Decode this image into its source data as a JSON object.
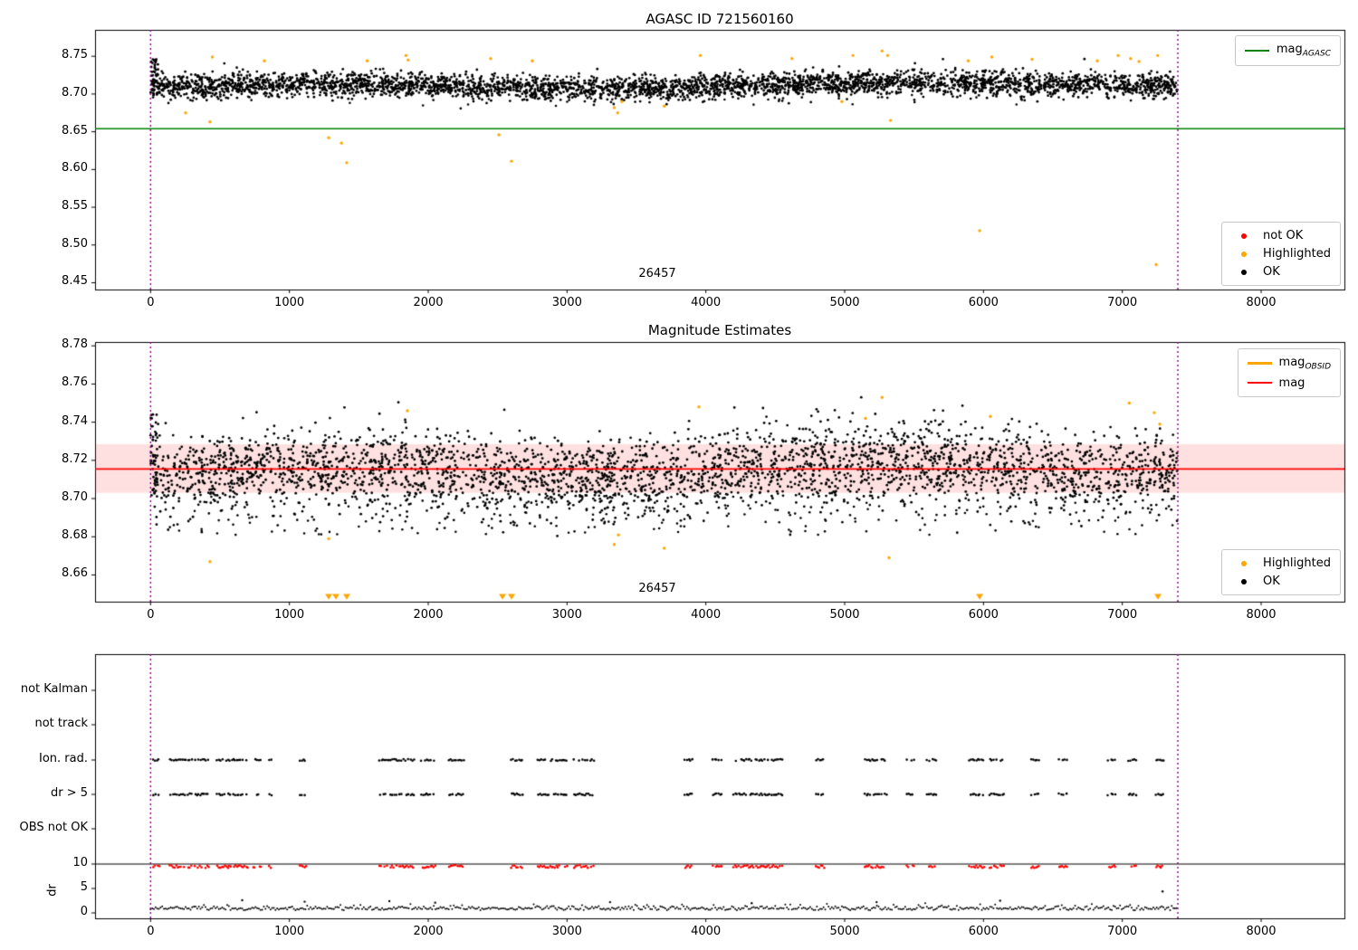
{
  "colors": {
    "black": "#000000",
    "red": "#ff0000",
    "orange": "#ffa500",
    "green": "#008000",
    "purple": "#800080",
    "band": "rgba(255,0,0,0.12)"
  },
  "chart_data": [
    {
      "type": "scatter",
      "title": "AGASC ID 721560160",
      "xlim": [
        -400,
        8600
      ],
      "ylim": [
        8.441,
        8.785
      ],
      "xticks": [
        0,
        1000,
        2000,
        3000,
        4000,
        5000,
        6000,
        7000,
        8000
      ],
      "yticks": [
        8.45,
        8.5,
        8.55,
        8.6,
        8.65,
        8.7,
        8.75
      ],
      "hline": {
        "y": 8.654,
        "color": "#008000"
      },
      "vlines": [
        0,
        7400
      ],
      "annotation": {
        "text": "26457",
        "x": 3650,
        "y": 8.462
      },
      "cloud": {
        "n": 3800,
        "seed": 42,
        "x_range": [
          10,
          7395
        ],
        "y_base": 8.709,
        "y_std": 0.008,
        "trend": 0.004,
        "wave_amp": 0.003,
        "wave_period": 700,
        "y_clamp": [
          8.679,
          8.753
        ]
      },
      "transient": {
        "n": 45,
        "seed": 7,
        "x_range": [
          0,
          55
        ],
        "y_range": [
          8.699,
          8.747
        ]
      },
      "low_tail": {
        "n": 25,
        "seed": 11,
        "x_range": [
          150,
          7350
        ],
        "y_range": [
          8.684,
          8.699
        ]
      },
      "highlighted_points": [
        [
          252,
          8.675
        ],
        [
          428,
          8.663
        ],
        [
          445,
          8.749
        ],
        [
          820,
          8.744
        ],
        [
          1283,
          8.642
        ],
        [
          1375,
          8.635
        ],
        [
          1413,
          8.609
        ],
        [
          1560,
          8.744
        ],
        [
          1840,
          8.751
        ],
        [
          1855,
          8.745
        ],
        [
          2450,
          8.747
        ],
        [
          2509,
          8.646
        ],
        [
          2600,
          8.611
        ],
        [
          2750,
          8.744
        ],
        [
          3340,
          8.682
        ],
        [
          3365,
          8.675
        ],
        [
          3395,
          8.69
        ],
        [
          3700,
          8.684
        ],
        [
          3960,
          8.751
        ],
        [
          4620,
          8.747
        ],
        [
          4980,
          8.69
        ],
        [
          5060,
          8.751
        ],
        [
          5270,
          8.757
        ],
        [
          5310,
          8.751
        ],
        [
          5330,
          8.665
        ],
        [
          5890,
          8.744
        ],
        [
          5972,
          8.519
        ],
        [
          6060,
          8.749
        ],
        [
          6350,
          8.746
        ],
        [
          6820,
          8.744
        ],
        [
          6970,
          8.751
        ],
        [
          7060,
          8.747
        ],
        [
          7120,
          8.743
        ],
        [
          7244,
          8.474
        ],
        [
          7255,
          8.751
        ]
      ],
      "legend_top": [
        {
          "type": "line",
          "color": "#008000",
          "lw": 2,
          "label": "mag",
          "sub": "AGASC"
        }
      ],
      "legend_bottom": [
        {
          "type": "dot",
          "color": "#ff0000",
          "label": "not OK"
        },
        {
          "type": "dot",
          "color": "#ffa500",
          "label": "Highlighted"
        },
        {
          "type": "dot",
          "color": "#000000",
          "label": "OK"
        }
      ]
    },
    {
      "type": "scatter",
      "title": "Magnitude Estimates",
      "xlim": [
        -400,
        8600
      ],
      "ylim": [
        8.646,
        8.782
      ],
      "xticks": [
        0,
        1000,
        2000,
        3000,
        4000,
        5000,
        6000,
        7000,
        8000
      ],
      "yticks": [
        8.66,
        8.68,
        8.7,
        8.72,
        8.74,
        8.76,
        8.78
      ],
      "band": {
        "y1": 8.703,
        "y2": 8.7285,
        "color": "rgba(255,0,0,0.12)"
      },
      "hline": {
        "y": 8.7155,
        "color": "#ff0000"
      },
      "vlines": [
        0,
        7400
      ],
      "annotation": {
        "text": "26457",
        "x": 3650,
        "y": 8.6515
      },
      "cloud": {
        "n": 3200,
        "seed": 101,
        "x_range": [
          10,
          7395
        ],
        "y_base": 8.712,
        "y_std": 0.0105,
        "trend": 0.005,
        "wave_amp": 0.004,
        "wave_period": 650,
        "y_clamp": [
          8.678,
          8.753
        ]
      },
      "transient": {
        "n": 40,
        "seed": 8,
        "x_range": [
          0,
          55
        ],
        "y_range": [
          8.7,
          8.744
        ]
      },
      "low_tail": {
        "n": 230,
        "seed": 12,
        "x_range": [
          100,
          7380
        ],
        "y_range": [
          8.681,
          8.702
        ]
      },
      "highlighted_points": [
        [
          428,
          8.667
        ],
        [
          1283,
          8.679
        ],
        [
          1850,
          8.746
        ],
        [
          3340,
          8.676
        ],
        [
          3370,
          8.681
        ],
        [
          3700,
          8.674
        ],
        [
          3950,
          8.748
        ],
        [
          5150,
          8.742
        ],
        [
          5270,
          8.753
        ],
        [
          5320,
          8.669
        ],
        [
          6050,
          8.743
        ],
        [
          7050,
          8.75
        ],
        [
          7230,
          8.745
        ],
        [
          7270,
          8.739
        ]
      ],
      "clip_triangles": {
        "xs": [
          1283,
          1335,
          1413,
          2535,
          2600,
          5972,
          7257
        ],
        "y": 8.6487,
        "color": "#ffa500"
      },
      "legend_top": [
        {
          "type": "line",
          "color": "#ffa500",
          "lw": 3,
          "label": "mag",
          "sub": "OBSID"
        },
        {
          "type": "line",
          "color": "#ff0000",
          "lw": 2,
          "label": "mag"
        }
      ],
      "legend_bottom": [
        {
          "type": "dot",
          "color": "#ffa500",
          "label": "Highlighted"
        },
        {
          "type": "dot",
          "color": "#000000",
          "label": "OK"
        }
      ]
    },
    {
      "type": "categorical-scatter",
      "ylabel": "dr",
      "xlim": [
        -400,
        8600
      ],
      "xticks": [
        0,
        1000,
        2000,
        3000,
        4000,
        5000,
        6000,
        7000,
        8000
      ],
      "rows": [
        "not Kalman",
        "not track",
        "Ion. rad.",
        "dr > 5",
        "OBS not OK"
      ],
      "rows_with_points": [
        2,
        3
      ],
      "dr_ticks": [
        10,
        5,
        0
      ],
      "hline_dr": 10,
      "vlines": [
        0,
        7400
      ],
      "black_rows_seed": 22,
      "red_points": {
        "dr_base": 9.2,
        "dr_jitter": 0.6,
        "color": "#ff0000",
        "seed": 21
      },
      "clusters": [
        [
          20,
          70
        ],
        [
          140,
          300
        ],
        [
          320,
          420
        ],
        [
          480,
          700
        ],
        [
          740,
          800
        ],
        [
          855,
          880
        ],
        [
          1075,
          1125
        ],
        [
          1650,
          1900
        ],
        [
          1950,
          2050
        ],
        [
          2150,
          2255
        ],
        [
          2600,
          2680
        ],
        [
          2790,
          3000
        ],
        [
          3050,
          3200
        ],
        [
          3850,
          3905
        ],
        [
          4050,
          4120
        ],
        [
          4200,
          4560
        ],
        [
          4795,
          4850
        ],
        [
          5145,
          5305
        ],
        [
          5445,
          5505
        ],
        [
          5595,
          5660
        ],
        [
          5895,
          6005
        ],
        [
          6045,
          6155
        ],
        [
          6345,
          6400
        ],
        [
          6545,
          6600
        ],
        [
          6895,
          6950
        ],
        [
          7045,
          7105
        ],
        [
          7245,
          7305
        ]
      ],
      "trace": {
        "x_range": [
          0,
          7400
        ],
        "step": 12,
        "base": 0.5,
        "seed": 33
      },
      "spikes": [
        [
          660,
          2.6
        ],
        [
          1110,
          2.3
        ],
        [
          1720,
          2.4
        ],
        [
          2050,
          2.1
        ],
        [
          3310,
          2.2
        ],
        [
          4330,
          2.0
        ],
        [
          5230,
          2.2
        ],
        [
          6120,
          2.5
        ],
        [
          7290,
          4.4
        ]
      ]
    }
  ]
}
